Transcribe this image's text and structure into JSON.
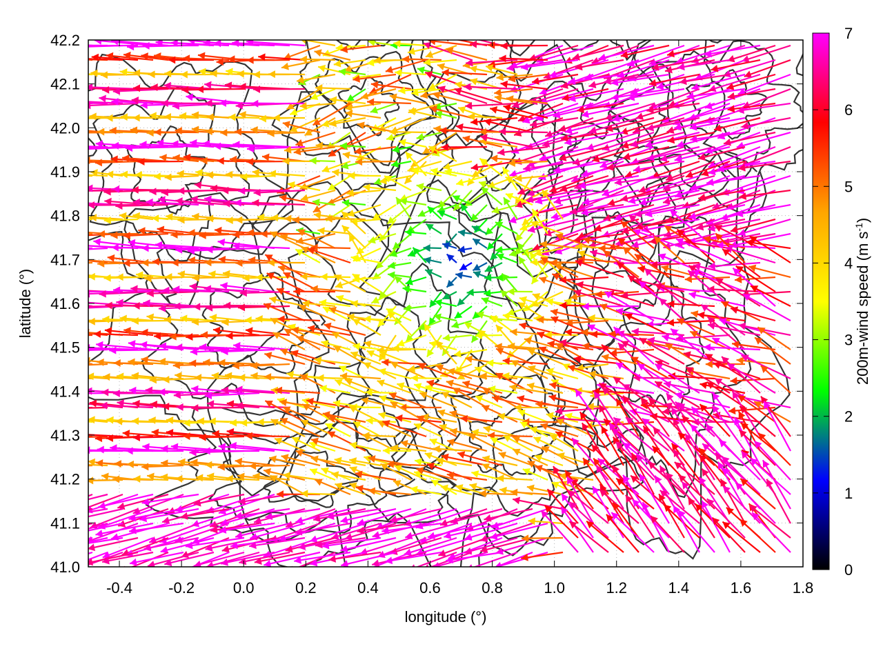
{
  "chart_data": {
    "type": "vector-field",
    "xlabel": "longitude (°)",
    "ylabel": "latitude (°)",
    "xlim": [
      -0.5,
      1.8
    ],
    "ylim": [
      41.0,
      42.2
    ],
    "xticks": [
      -0.4,
      -0.2,
      0.0,
      0.2,
      0.4,
      0.6,
      0.8,
      1.0,
      1.2,
      1.4,
      1.6,
      1.8
    ],
    "xtick_labels": [
      "-0.4",
      "-0.2",
      "0.0",
      "0.2",
      "0.4",
      "0.6",
      "0.8",
      "1.0",
      "1.2",
      "1.4",
      "1.6",
      "1.8"
    ],
    "yticks": [
      41.0,
      41.1,
      41.2,
      41.3,
      41.4,
      41.5,
      41.6,
      41.7,
      41.8,
      41.9,
      42.0,
      42.1,
      42.2
    ],
    "ytick_labels": [
      "41.0",
      "41.1",
      "41.2",
      "41.3",
      "41.4",
      "41.5",
      "41.6",
      "41.7",
      "41.8",
      "41.9",
      "42.0",
      "42.1",
      "42.2"
    ],
    "grid": true,
    "colorbar": {
      "label_main": "200m-wind speed (m s",
      "label_sup": "-1",
      "label_end": ")",
      "range": [
        0,
        7
      ],
      "ticks": [
        0,
        1,
        2,
        3,
        4,
        5,
        6,
        7
      ],
      "tick_labels": [
        "0",
        "1",
        "2",
        "3",
        "4",
        "5",
        "6",
        "7"
      ],
      "stops": [
        "#000000",
        "#0000ff",
        "#00ff00",
        "#ffff00",
        "#ffa500",
        "#ff0000",
        "#ff00ff"
      ]
    },
    "contour_color": "#333333",
    "field_regions": [
      {
        "area": "west",
        "direction_deg": 180,
        "speed": 6.8
      },
      {
        "area": "central corridor",
        "direction_deg": 170,
        "speed": 4.5
      },
      {
        "area": "center near 0.7, 41.7",
        "direction_deg": 180,
        "speed": 1.5
      },
      {
        "area": "north-east",
        "direction_deg": 195,
        "speed": 6.5
      },
      {
        "area": "south-east",
        "direction_deg": 135,
        "speed": 6.2
      },
      {
        "area": "south-west",
        "direction_deg": 200,
        "speed": 6.6
      }
    ]
  }
}
